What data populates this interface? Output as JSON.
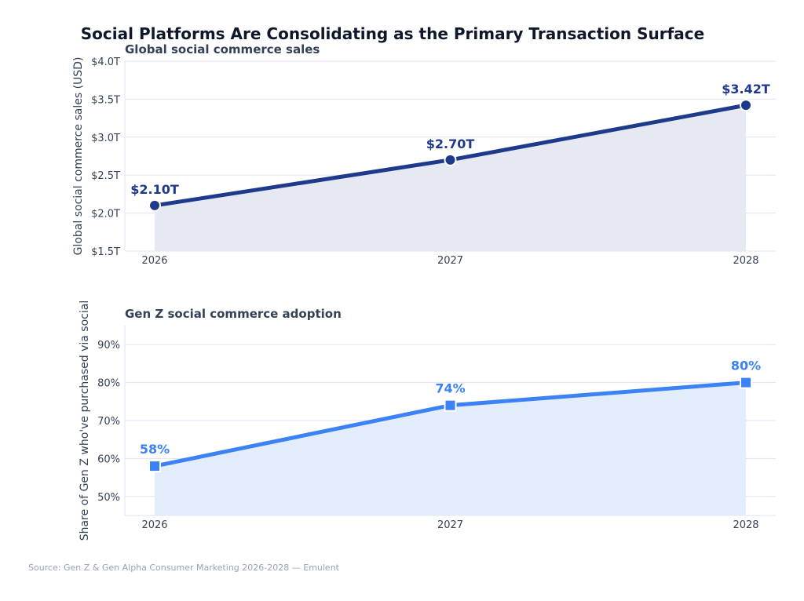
{
  "title": "Social Platforms Are Consolidating as the Primary Transaction Surface",
  "source": "Source: Gen Z & Gen Alpha Consumer Marketing 2026-2028 — Emulent",
  "colors": {
    "sales": "#1e3a8a",
    "sales_fill": "#e7e9f2",
    "adoption": "#3b82f6",
    "adoption_fill": "#e3ecfb",
    "grid": "#dde3f0",
    "axis_text": "#334155"
  },
  "chart_data": [
    {
      "type": "area",
      "title": "Global social commerce sales",
      "xlabel": "",
      "ylabel": "Global social commerce sales (USD)",
      "categories": [
        "2026",
        "2027",
        "2028"
      ],
      "values": [
        2.1,
        2.7,
        3.42
      ],
      "data_labels": [
        "$2.10T",
        "$2.70T",
        "$3.42T"
      ],
      "ylim": [
        1.5,
        4.0
      ],
      "yticks": [
        1.5,
        2.0,
        2.5,
        3.0,
        3.5,
        4.0
      ],
      "ytick_labels": [
        "$1.5T",
        "$2.0T",
        "$2.5T",
        "$3.0T",
        "$3.5T",
        "$4.0T"
      ],
      "marker": "circle",
      "grid": true
    },
    {
      "type": "area",
      "title": "Gen Z social commerce adoption",
      "xlabel": "",
      "ylabel": "Share of Gen Z who've purchased via social",
      "categories": [
        "2026",
        "2027",
        "2028"
      ],
      "values": [
        58,
        74,
        80
      ],
      "data_labels": [
        "58%",
        "74%",
        "80%"
      ],
      "ylim": [
        45,
        95
      ],
      "yticks": [
        50,
        60,
        70,
        80,
        90
      ],
      "ytick_labels": [
        "50%",
        "60%",
        "70%",
        "80%",
        "90%"
      ],
      "marker": "square",
      "grid": true
    }
  ]
}
